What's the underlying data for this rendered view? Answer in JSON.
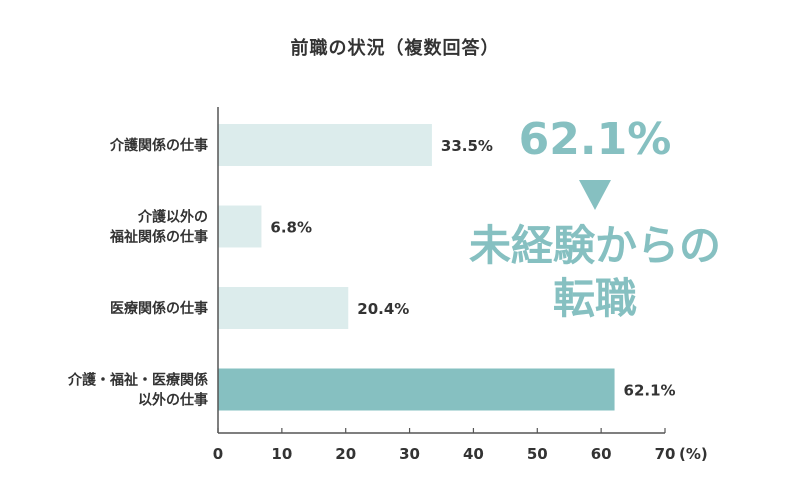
{
  "colors": {
    "bar_light": "#dcecec",
    "bar_highlight": "#86c0c1",
    "text": "#333333",
    "axis": "#555555"
  },
  "callout": {
    "percent": "62.1%",
    "arrow_icon": "down-triangle-icon",
    "line1": "未経験からの",
    "line2": "転職"
  },
  "chart_data": {
    "type": "bar",
    "orientation": "horizontal",
    "title": "前職の状況（複数回答）",
    "categories": [
      [
        "介護関係の仕事"
      ],
      [
        "介護以外の",
        "福祉関係の仕事"
      ],
      [
        "医療関係の仕事"
      ],
      [
        "介護・福祉・医療関係",
        "以外の仕事"
      ]
    ],
    "values": [
      33.5,
      6.8,
      20.4,
      62.1
    ],
    "value_labels": [
      "33.5%",
      "6.8%",
      "20.4%",
      "62.1%"
    ],
    "highlight_index": 3,
    "xlim": [
      0,
      70
    ],
    "xticks": [
      0,
      10,
      20,
      30,
      40,
      50,
      60,
      70
    ],
    "xunit": "(%)",
    "grid": false
  }
}
